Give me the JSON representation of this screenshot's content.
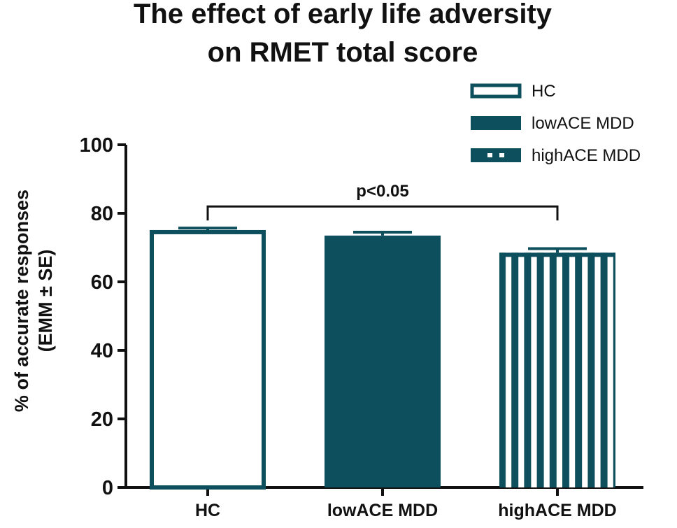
{
  "chart_data": {
    "type": "bar",
    "title_lines": [
      "The effect of early life adversity",
      "on RMET total score"
    ],
    "ylabel_lines": [
      "% of accurate responses",
      "(EMM ± SE)"
    ],
    "xlabel": "",
    "ylim": [
      0,
      100
    ],
    "yticks": [
      "0",
      "20",
      "40",
      "60",
      "80",
      "100"
    ],
    "categories": [
      "HC",
      "lowACE MDD",
      "highACE MDD"
    ],
    "values": [
      74.5,
      73.5,
      68.5
    ],
    "errors": [
      1.2,
      1.0,
      1.2
    ],
    "series_styles": [
      "outline",
      "solid",
      "striped"
    ],
    "color": "#0d4f5c",
    "legend": {
      "position": "top-right",
      "entries": [
        "HC",
        "lowACE MDD",
        "highACE MDD"
      ]
    },
    "annotation": {
      "text": "p<0.05",
      "from_category": "HC",
      "to_category": "highACE MDD",
      "level": 82
    }
  }
}
